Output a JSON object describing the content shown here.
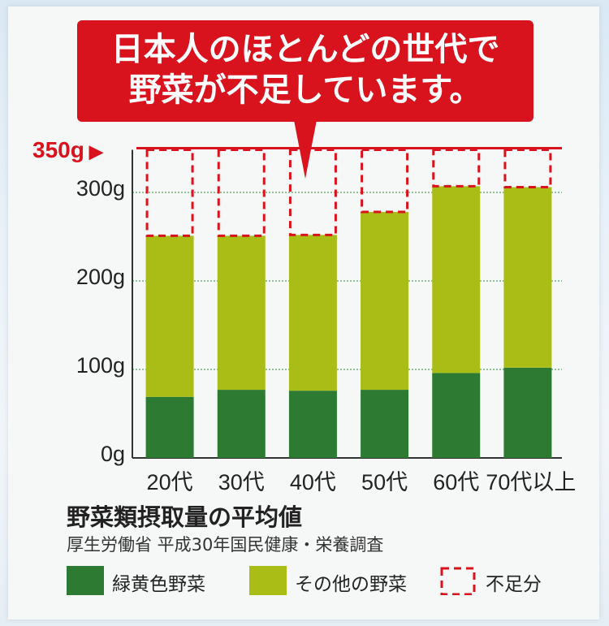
{
  "bubble": {
    "line1": "日本人のほとんどの世代で",
    "line2": "野菜が不足しています。"
  },
  "target_label": "350g",
  "target_arrow": "▶",
  "colors": {
    "green_yellow_veg": "#2d7a32",
    "other_veg": "#a9bd16",
    "shortfall": "#d9131d",
    "accent": "#d9131d"
  },
  "legend": {
    "green_yellow": "緑黄色野菜",
    "other": "その他の野菜",
    "shortfall": "不足分"
  },
  "title": "野菜類摂取量の平均値",
  "source": "厚生労働省 平成30年国民健康・栄養調査",
  "chart_data": {
    "type": "bar",
    "stacked": true,
    "categories": [
      "20代",
      "30代",
      "40代",
      "50代",
      "60代",
      "70代以上"
    ],
    "series": [
      {
        "name": "緑黄色野菜",
        "values": [
          69,
          77,
          76,
          77,
          96,
          102
        ]
      },
      {
        "name": "その他の野菜",
        "values": [
          182,
          174,
          176,
          201,
          211,
          204
        ]
      },
      {
        "name": "不足分",
        "values": [
          99,
          99,
          98,
          72,
          43,
          44
        ]
      }
    ],
    "target": 350,
    "y_ticks": [
      "0g",
      "100g",
      "200g",
      "300g"
    ],
    "y_tick_values": [
      0,
      100,
      200,
      300
    ],
    "ylim": [
      0,
      350
    ],
    "grid": true,
    "legend_position": "bottom"
  }
}
